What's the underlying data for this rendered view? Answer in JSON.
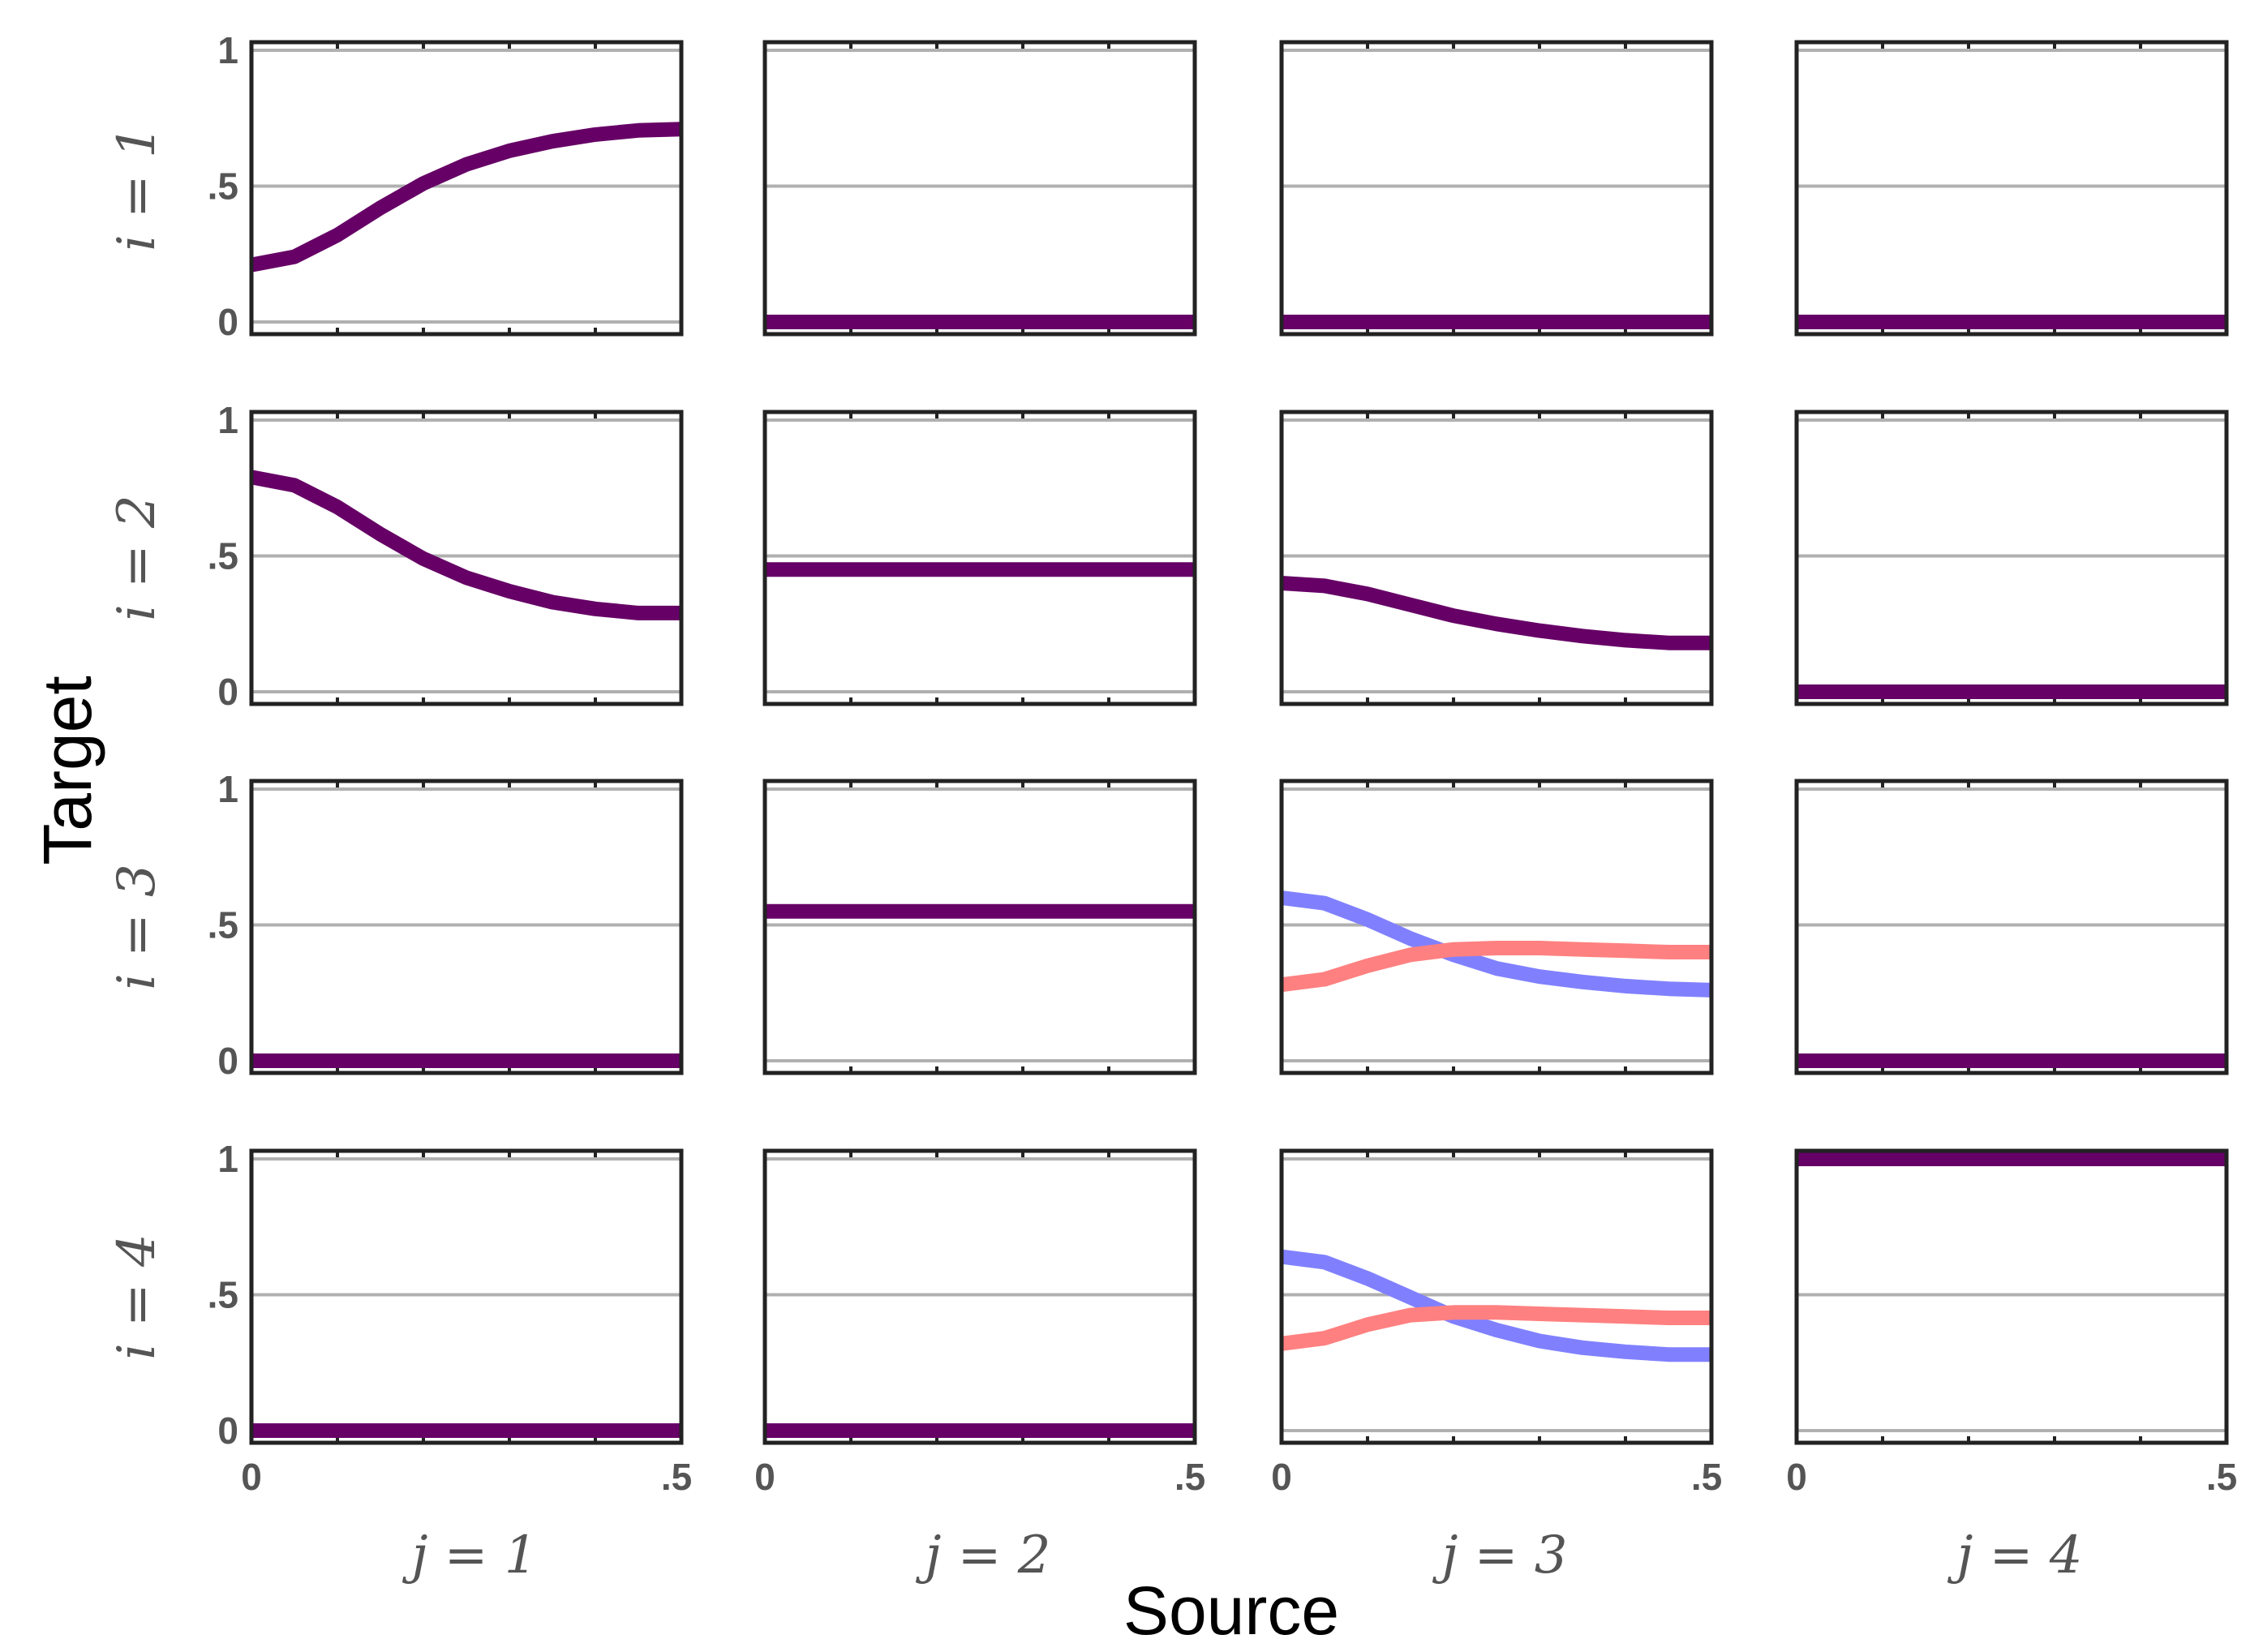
{
  "chart_data": {
    "type": "line",
    "title": "",
    "xlabel": "Source",
    "ylabel": "Target",
    "row_labels": [
      "i = 1",
      "i = 2",
      "i = 3",
      "i = 4"
    ],
    "col_labels": [
      "j = 1",
      "j = 2",
      "j = 3",
      "j = 4"
    ],
    "xlim": [
      0,
      0.5
    ],
    "ylim": [
      0,
      1
    ],
    "x_tick_labels": [
      "0",
      ".5"
    ],
    "y_tick_labels": [
      "0",
      ".5",
      "1"
    ],
    "colors": {
      "single": "#660066",
      "blue": "#8080ff",
      "red": "#ff8080"
    },
    "x": [
      0,
      0.05,
      0.1,
      0.15,
      0.2,
      0.25,
      0.3,
      0.35,
      0.4,
      0.45,
      0.5
    ],
    "panels": [
      [
        {
          "series": [
            {
              "name": "single",
              "values": [
                0.21,
                0.24,
                0.32,
                0.42,
                0.51,
                0.58,
                0.63,
                0.665,
                0.69,
                0.705,
                0.71
              ]
            }
          ]
        },
        {
          "series": [
            {
              "name": "single",
              "values": [
                0,
                0,
                0,
                0,
                0,
                0,
                0,
                0,
                0,
                0,
                0
              ]
            }
          ]
        },
        {
          "series": [
            {
              "name": "single",
              "values": [
                0,
                0,
                0,
                0,
                0,
                0,
                0,
                0,
                0,
                0,
                0
              ]
            }
          ]
        },
        {
          "series": [
            {
              "name": "single",
              "values": [
                0,
                0,
                0,
                0,
                0,
                0,
                0,
                0,
                0,
                0,
                0
              ]
            }
          ]
        }
      ],
      [
        {
          "series": [
            {
              "name": "single",
              "values": [
                0.79,
                0.76,
                0.68,
                0.58,
                0.49,
                0.42,
                0.37,
                0.33,
                0.305,
                0.29,
                0.29
              ]
            }
          ]
        },
        {
          "series": [
            {
              "name": "single",
              "values": [
                0.45,
                0.45,
                0.45,
                0.45,
                0.45,
                0.45,
                0.45,
                0.45,
                0.45,
                0.45,
                0.45
              ]
            }
          ]
        },
        {
          "series": [
            {
              "name": "single",
              "values": [
                0.4,
                0.39,
                0.36,
                0.32,
                0.28,
                0.25,
                0.225,
                0.205,
                0.19,
                0.18,
                0.18
              ]
            }
          ]
        },
        {
          "series": [
            {
              "name": "single",
              "values": [
                0,
                0,
                0,
                0,
                0,
                0,
                0,
                0,
                0,
                0,
                0
              ]
            }
          ]
        }
      ],
      [
        {
          "series": [
            {
              "name": "single",
              "values": [
                0,
                0,
                0,
                0,
                0,
                0,
                0,
                0,
                0,
                0,
                0
              ]
            }
          ]
        },
        {
          "series": [
            {
              "name": "single",
              "values": [
                0.55,
                0.55,
                0.55,
                0.55,
                0.55,
                0.55,
                0.55,
                0.55,
                0.55,
                0.55,
                0.55
              ]
            }
          ]
        },
        {
          "series": [
            {
              "name": "blue",
              "values": [
                0.6,
                0.58,
                0.52,
                0.45,
                0.39,
                0.34,
                0.31,
                0.29,
                0.275,
                0.265,
                0.26
              ]
            },
            {
              "name": "red",
              "values": [
                0.28,
                0.3,
                0.35,
                0.39,
                0.41,
                0.415,
                0.415,
                0.41,
                0.405,
                0.4,
                0.4
              ]
            }
          ]
        },
        {
          "series": [
            {
              "name": "single",
              "values": [
                0,
                0,
                0,
                0,
                0,
                0,
                0,
                0,
                0,
                0,
                0
              ]
            }
          ]
        }
      ],
      [
        {
          "series": [
            {
              "name": "single",
              "values": [
                0,
                0,
                0,
                0,
                0,
                0,
                0,
                0,
                0,
                0,
                0
              ]
            }
          ]
        },
        {
          "series": [
            {
              "name": "single",
              "values": [
                0,
                0,
                0,
                0,
                0,
                0,
                0,
                0,
                0,
                0,
                0
              ]
            }
          ]
        },
        {
          "series": [
            {
              "name": "blue",
              "values": [
                0.64,
                0.62,
                0.56,
                0.49,
                0.42,
                0.37,
                0.33,
                0.305,
                0.29,
                0.28,
                0.28
              ]
            },
            {
              "name": "red",
              "values": [
                0.32,
                0.34,
                0.39,
                0.425,
                0.435,
                0.435,
                0.43,
                0.425,
                0.42,
                0.415,
                0.415
              ]
            }
          ]
        },
        {
          "series": [
            {
              "name": "single",
              "values": [
                1,
                1,
                1,
                1,
                1,
                1,
                1,
                1,
                1,
                1,
                1
              ]
            }
          ]
        }
      ]
    ]
  }
}
